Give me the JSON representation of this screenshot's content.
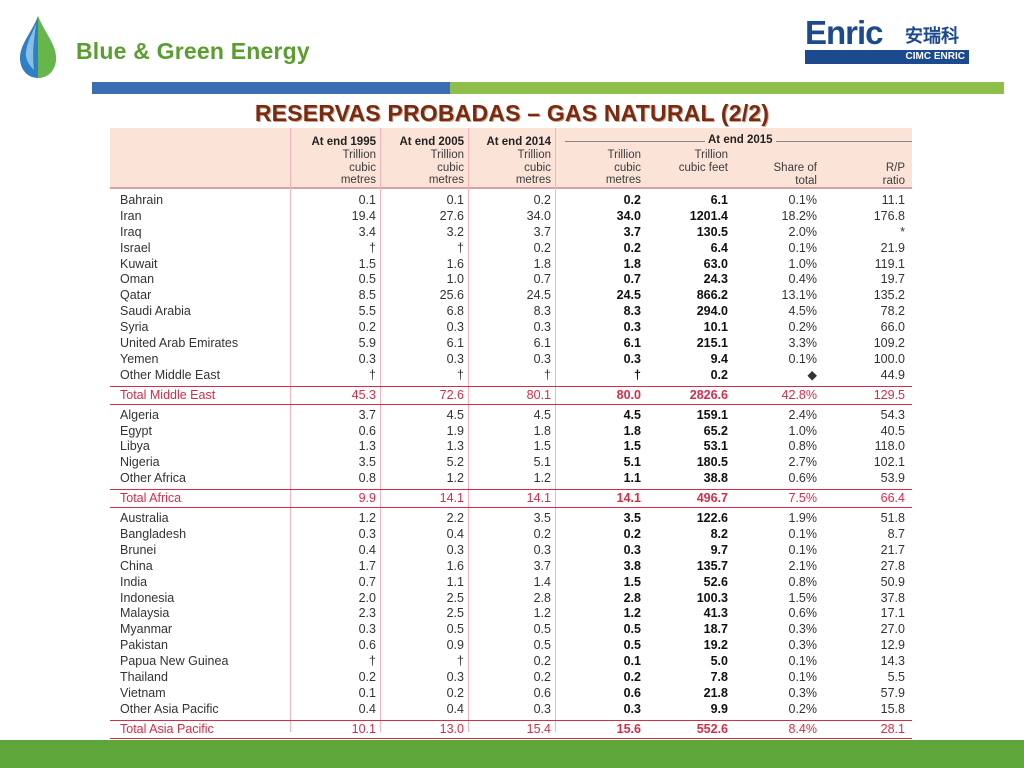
{
  "brand": {
    "name": "Blue & Green Energy"
  },
  "logo": {
    "word": "Enric",
    "chinese": "安瑞科",
    "sub": "CIMC ENRIC"
  },
  "title": "RESERVAS PROBADAS – GAS NATURAL (2/2)",
  "table": {
    "group_header": "At end 2015",
    "columns": [
      {
        "year": "At end 1995",
        "unit": "Trillion cubic metres"
      },
      {
        "year": "At end 2005",
        "unit": "Trillion cubic metres"
      },
      {
        "year": "At end 2014",
        "unit": "Trillion cubic metres"
      },
      {
        "year": "",
        "unit": "Trillion cubic metres"
      },
      {
        "year": "",
        "unit": "Trillion cubic feet"
      },
      {
        "year": "",
        "unit": "Share of total"
      },
      {
        "year": "",
        "unit": "R/P ratio"
      }
    ],
    "rows": [
      {
        "name": "Bahrain",
        "v": [
          "0.1",
          "0.1",
          "0.2",
          "0.2",
          "6.1",
          "0.1%",
          "11.1"
        ]
      },
      {
        "name": "Iran",
        "v": [
          "19.4",
          "27.6",
          "34.0",
          "34.0",
          "1201.4",
          "18.2%",
          "176.8"
        ]
      },
      {
        "name": "Iraq",
        "v": [
          "3.4",
          "3.2",
          "3.7",
          "3.7",
          "130.5",
          "2.0%",
          "*"
        ]
      },
      {
        "name": "Israel",
        "v": [
          "†",
          "†",
          "0.2",
          "0.2",
          "6.4",
          "0.1%",
          "21.9"
        ]
      },
      {
        "name": "Kuwait",
        "v": [
          "1.5",
          "1.6",
          "1.8",
          "1.8",
          "63.0",
          "1.0%",
          "119.1"
        ]
      },
      {
        "name": "Oman",
        "v": [
          "0.5",
          "1.0",
          "0.7",
          "0.7",
          "24.3",
          "0.4%",
          "19.7"
        ]
      },
      {
        "name": "Qatar",
        "v": [
          "8.5",
          "25.6",
          "24.5",
          "24.5",
          "866.2",
          "13.1%",
          "135.2"
        ]
      },
      {
        "name": "Saudi Arabia",
        "v": [
          "5.5",
          "6.8",
          "8.3",
          "8.3",
          "294.0",
          "4.5%",
          "78.2"
        ]
      },
      {
        "name": "Syria",
        "v": [
          "0.2",
          "0.3",
          "0.3",
          "0.3",
          "10.1",
          "0.2%",
          "66.0"
        ]
      },
      {
        "name": "United Arab Emirates",
        "v": [
          "5.9",
          "6.1",
          "6.1",
          "6.1",
          "215.1",
          "3.3%",
          "109.2"
        ]
      },
      {
        "name": "Yemen",
        "v": [
          "0.3",
          "0.3",
          "0.3",
          "0.3",
          "9.4",
          "0.1%",
          "100.0"
        ]
      },
      {
        "name": "Other Middle East",
        "v": [
          "†",
          "†",
          "†",
          "†",
          "0.2",
          "◆",
          "44.9"
        ]
      },
      {
        "name": "Total Middle East",
        "total": true,
        "v": [
          "45.3",
          "72.6",
          "80.1",
          "80.0",
          "2826.6",
          "42.8%",
          "129.5"
        ]
      },
      {
        "name": "Algeria",
        "v": [
          "3.7",
          "4.5",
          "4.5",
          "4.5",
          "159.1",
          "2.4%",
          "54.3"
        ]
      },
      {
        "name": "Egypt",
        "v": [
          "0.6",
          "1.9",
          "1.8",
          "1.8",
          "65.2",
          "1.0%",
          "40.5"
        ]
      },
      {
        "name": "Libya",
        "v": [
          "1.3",
          "1.3",
          "1.5",
          "1.5",
          "53.1",
          "0.8%",
          "118.0"
        ]
      },
      {
        "name": "Nigeria",
        "v": [
          "3.5",
          "5.2",
          "5.1",
          "5.1",
          "180.5",
          "2.7%",
          "102.1"
        ]
      },
      {
        "name": "Other Africa",
        "v": [
          "0.8",
          "1.2",
          "1.2",
          "1.1",
          "38.8",
          "0.6%",
          "53.9"
        ]
      },
      {
        "name": "Total Africa",
        "total": true,
        "v": [
          "9.9",
          "14.1",
          "14.1",
          "14.1",
          "496.7",
          "7.5%",
          "66.4"
        ]
      },
      {
        "name": "Australia",
        "v": [
          "1.2",
          "2.2",
          "3.5",
          "3.5",
          "122.6",
          "1.9%",
          "51.8"
        ]
      },
      {
        "name": "Bangladesh",
        "v": [
          "0.3",
          "0.4",
          "0.2",
          "0.2",
          "8.2",
          "0.1%",
          "8.7"
        ]
      },
      {
        "name": "Brunei",
        "v": [
          "0.4",
          "0.3",
          "0.3",
          "0.3",
          "9.7",
          "0.1%",
          "21.7"
        ]
      },
      {
        "name": "China",
        "v": [
          "1.7",
          "1.6",
          "3.7",
          "3.8",
          "135.7",
          "2.1%",
          "27.8"
        ]
      },
      {
        "name": "India",
        "v": [
          "0.7",
          "1.1",
          "1.4",
          "1.5",
          "52.6",
          "0.8%",
          "50.9"
        ]
      },
      {
        "name": "Indonesia",
        "v": [
          "2.0",
          "2.5",
          "2.8",
          "2.8",
          "100.3",
          "1.5%",
          "37.8"
        ]
      },
      {
        "name": "Malaysia",
        "v": [
          "2.3",
          "2.5",
          "1.2",
          "1.2",
          "41.3",
          "0.6%",
          "17.1"
        ]
      },
      {
        "name": "Myanmar",
        "v": [
          "0.3",
          "0.5",
          "0.5",
          "0.5",
          "18.7",
          "0.3%",
          "27.0"
        ]
      },
      {
        "name": "Pakistan",
        "v": [
          "0.6",
          "0.9",
          "0.5",
          "0.5",
          "19.2",
          "0.3%",
          "12.9"
        ]
      },
      {
        "name": "Papua New Guinea",
        "v": [
          "†",
          "†",
          "0.2",
          "0.1",
          "5.0",
          "0.1%",
          "14.3"
        ]
      },
      {
        "name": "Thailand",
        "v": [
          "0.2",
          "0.3",
          "0.2",
          "0.2",
          "7.8",
          "0.1%",
          "5.5"
        ]
      },
      {
        "name": "Vietnam",
        "v": [
          "0.1",
          "0.2",
          "0.6",
          "0.6",
          "21.8",
          "0.3%",
          "57.9"
        ]
      },
      {
        "name": "Other Asia Pacific",
        "v": [
          "0.4",
          "0.4",
          "0.3",
          "0.3",
          "9.9",
          "0.2%",
          "15.8"
        ]
      },
      {
        "name": "Total Asia Pacific",
        "total": true,
        "v": [
          "10.1",
          "13.0",
          "15.4",
          "15.6",
          "552.6",
          "8.4%",
          "28.1"
        ]
      }
    ]
  },
  "colors": {
    "brand_green": "#5a9e2f",
    "title_brown": "#7a2a0e",
    "total_red": "#d22e4a",
    "enric_blue": "#1c4a8e",
    "header_bg": "#fbe3d8"
  }
}
